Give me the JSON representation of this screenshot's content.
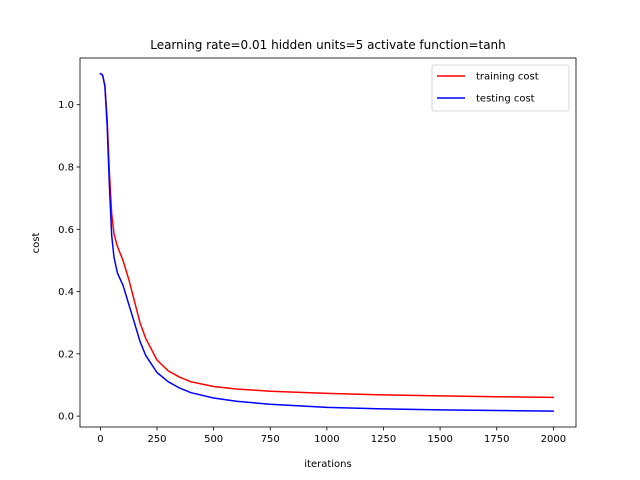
{
  "chart_data": {
    "type": "line",
    "title": "Learning rate=0.01 hidden units=5 activate function=tanh",
    "xlabel": "iterations",
    "ylabel": "cost",
    "xlim": [
      -90,
      2100
    ],
    "ylim": [
      -0.035,
      1.15
    ],
    "xticks": [
      0,
      250,
      500,
      750,
      1000,
      1250,
      1500,
      1750,
      2000
    ],
    "xtick_labels": [
      "0",
      "250",
      "500",
      "750",
      "1000",
      "1250",
      "1500",
      "1750",
      "2000"
    ],
    "yticks": [
      0.0,
      0.2,
      0.4,
      0.6,
      0.8,
      1.0
    ],
    "ytick_labels": [
      "0.0",
      "0.2",
      "0.4",
      "0.6",
      "0.8",
      "1.0"
    ],
    "grid": false,
    "legend_position": "upper-right",
    "x": [
      0,
      10,
      20,
      30,
      40,
      50,
      60,
      75,
      100,
      125,
      150,
      175,
      200,
      250,
      300,
      350,
      400,
      500,
      600,
      750,
      1000,
      1250,
      1500,
      1750,
      2000
    ],
    "series": [
      {
        "name": "training cost",
        "color": "#ff0000",
        "values": [
          1.1,
          1.095,
          1.06,
          0.95,
          0.78,
          0.65,
          0.585,
          0.545,
          0.5,
          0.44,
          0.37,
          0.3,
          0.25,
          0.18,
          0.145,
          0.125,
          0.11,
          0.095,
          0.087,
          0.08,
          0.073,
          0.068,
          0.065,
          0.062,
          0.06
        ]
      },
      {
        "name": "testing cost",
        "color": "#0000ff",
        "values": [
          1.1,
          1.095,
          1.06,
          0.93,
          0.74,
          0.58,
          0.51,
          0.46,
          0.42,
          0.36,
          0.3,
          0.24,
          0.195,
          0.14,
          0.11,
          0.09,
          0.075,
          0.058,
          0.048,
          0.038,
          0.028,
          0.023,
          0.02,
          0.018,
          0.016
        ]
      }
    ]
  }
}
